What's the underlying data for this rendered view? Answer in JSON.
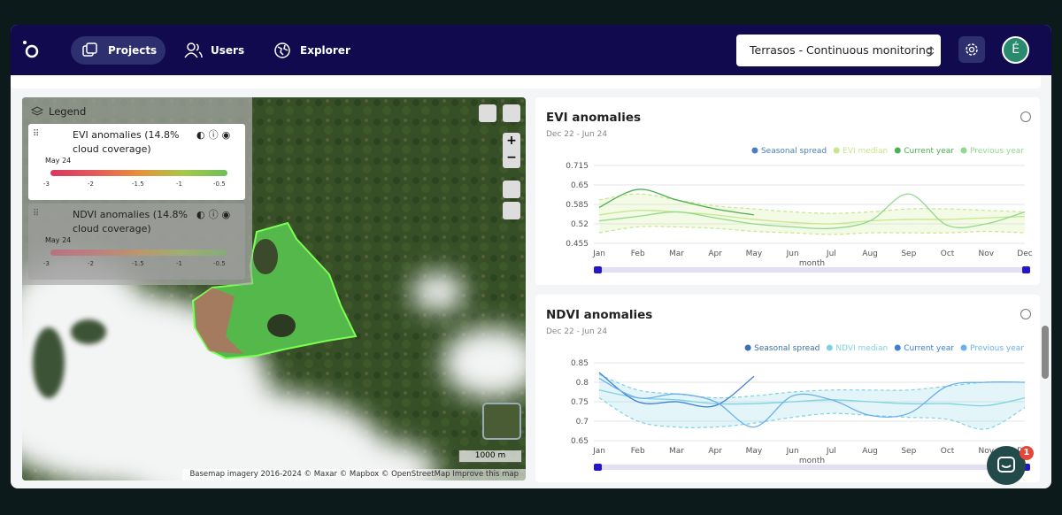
{
  "nav": {
    "items": [
      "Projects",
      "Users",
      "Explorer"
    ],
    "project": "Terrasos - Continuous monitoring",
    "avatar": "É"
  },
  "legend": {
    "title": "Legend",
    "layers": [
      {
        "name": "EVI anomalies (14.8% cloud coverage)",
        "date": "May 24",
        "ticks": [
          -3,
          -2,
          -1.5,
          -1,
          -0.5
        ]
      },
      {
        "name": "NDVI anomalies (14.8% cloud coverage)",
        "date": "May 24",
        "ticks": [
          -3,
          -2,
          -1.5,
          -1,
          -0.5
        ]
      }
    ]
  },
  "map": {
    "scale": "1000 m",
    "attribution": "Basemap imagery 2016-2024 © Maxar © Mapbox © OpenStreetMap Improve this map"
  },
  "chat": {
    "badge": 1
  },
  "chart_data": [
    {
      "type": "line",
      "title": "EVI anomalies",
      "subtitle": "Dec 22 - Jun 24",
      "x_label": "month",
      "categories": [
        "Jan",
        "Feb",
        "Mar",
        "Apr",
        "May",
        "Jun",
        "Jul",
        "Aug",
        "Sep",
        "Oct",
        "Nov",
        "Dec"
      ],
      "ylim": [
        0.455,
        0.715
      ],
      "yticks": [
        0.455,
        0.52,
        0.585,
        0.65,
        0.715
      ],
      "grid": true,
      "series": [
        {
          "name": "Seasonal spread",
          "color": "#4a7fbf",
          "band_color": "#c8e68a",
          "upper": [
            0.6,
            0.62,
            0.6,
            0.58,
            0.57,
            0.56,
            0.555,
            0.56,
            0.57,
            0.57,
            0.565,
            0.56
          ],
          "lower": [
            0.49,
            0.51,
            0.51,
            0.505,
            0.495,
            0.49,
            0.485,
            0.49,
            0.49,
            0.49,
            0.495,
            0.49
          ]
        },
        {
          "name": "EVI median",
          "color": "#c8e68a",
          "values": [
            0.55,
            0.565,
            0.56,
            0.55,
            0.535,
            0.525,
            0.52,
            0.53,
            0.535,
            0.535,
            0.54,
            0.545
          ]
        },
        {
          "name": "Current year",
          "color": "#4caf50",
          "values": [
            0.575,
            0.635,
            0.6,
            0.57,
            0.55,
            null,
            null,
            null,
            null,
            null,
            null,
            null
          ]
        },
        {
          "name": "Previous year",
          "color": "#8fd98f",
          "values": [
            0.53,
            0.545,
            0.56,
            0.54,
            0.52,
            0.51,
            0.505,
            0.53,
            0.62,
            0.515,
            0.52,
            0.56
          ]
        }
      ]
    },
    {
      "type": "line",
      "title": "NDVI anomalies",
      "subtitle": "Dec 22 - Jun 24",
      "x_label": "month",
      "categories": [
        "Jan",
        "Feb",
        "Mar",
        "Apr",
        "May",
        "Jun",
        "Jul",
        "Aug",
        "Sep",
        "Oct",
        "Nov",
        "Dec"
      ],
      "ylim": [
        0.65,
        0.85
      ],
      "yticks": [
        0.65,
        0.7,
        0.75,
        0.8,
        0.85
      ],
      "grid": true,
      "series": [
        {
          "name": "Seasonal spread",
          "color": "#3a6fb0",
          "band_color": "#7fd3e0",
          "upper": [
            0.82,
            0.78,
            0.77,
            0.76,
            0.765,
            0.775,
            0.78,
            0.78,
            0.78,
            0.79,
            0.8,
            0.8
          ],
          "lower": [
            0.76,
            0.7,
            0.685,
            0.685,
            0.695,
            0.71,
            0.72,
            0.715,
            0.71,
            0.705,
            0.68,
            0.735
          ]
        },
        {
          "name": "NDVI median",
          "color": "#7fd3e0",
          "values": [
            0.78,
            0.76,
            0.755,
            0.745,
            0.745,
            0.75,
            0.755,
            0.75,
            0.745,
            0.745,
            0.74,
            0.76
          ]
        },
        {
          "name": "Current year",
          "color": "#3b7dd8",
          "values": [
            0.825,
            0.75,
            0.75,
            0.74,
            0.815,
            null,
            null,
            null,
            null,
            null,
            null,
            null
          ]
        },
        {
          "name": "Previous year",
          "color": "#6ab0ee",
          "values": [
            0.81,
            0.76,
            0.77,
            0.75,
            0.685,
            0.765,
            0.755,
            0.715,
            0.72,
            0.79,
            0.8,
            0.8
          ]
        }
      ]
    }
  ]
}
